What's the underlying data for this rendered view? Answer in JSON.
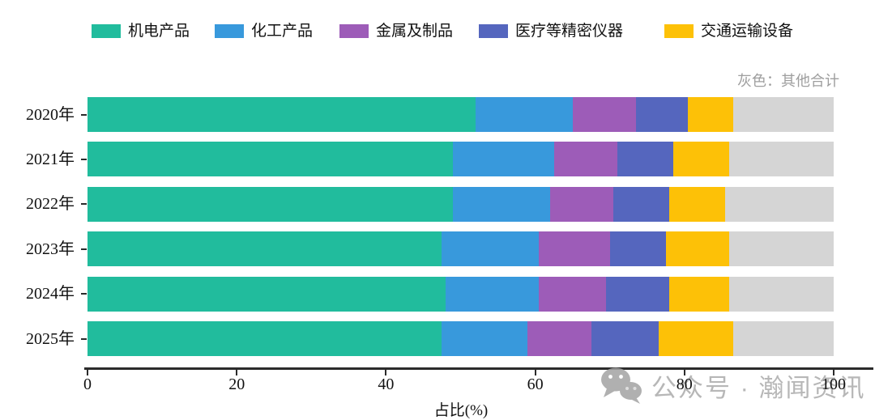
{
  "chart_data": {
    "type": "bar",
    "orientation": "horizontal-stacked",
    "title": "",
    "categories": [
      "2020年",
      "2021年",
      "2022年",
      "2023年",
      "2024年",
      "2025年"
    ],
    "series": [
      {
        "name": "机电产品",
        "color": "#21BC9D",
        "values": [
          52.0,
          49.0,
          49.0,
          47.5,
          48.0,
          47.5
        ]
      },
      {
        "name": "化工产品",
        "color": "#3899DC",
        "values": [
          13.0,
          13.5,
          13.0,
          13.0,
          12.5,
          11.5
        ]
      },
      {
        "name": "金属及制品",
        "color": "#9D5CB8",
        "values": [
          8.5,
          8.5,
          8.5,
          9.5,
          9.0,
          8.5
        ]
      },
      {
        "name": "医疗等精密仪器",
        "color": "#5566BE",
        "values": [
          7.0,
          7.5,
          7.5,
          7.5,
          8.5,
          9.0
        ]
      },
      {
        "name": "交通运输设备",
        "color": "#FDC107",
        "values": [
          6.0,
          7.5,
          7.5,
          8.5,
          8.0,
          10.0
        ]
      },
      {
        "name": "其他合计",
        "color": "#D5D5D5",
        "values": [
          13.5,
          14.0,
          14.5,
          14.0,
          14.0,
          13.5
        ]
      }
    ],
    "xlabel": "占比(%)",
    "xlim": [
      0,
      100
    ],
    "xticks": [
      0,
      20,
      40,
      60,
      80,
      100
    ],
    "grid": false,
    "legend_position": "top"
  },
  "legend": {
    "items": [
      "机电产品",
      "化工产品",
      "金属及制品",
      "医疗等精密仪器",
      "交通运输设备"
    ]
  },
  "note": "灰色：其他合计",
  "watermark": {
    "icon": "wechat-icon",
    "text": "公众号 · 瀚闻资讯"
  },
  "colors": {
    "axis": "#2b2b2b",
    "note_text": "#9e9e9e",
    "watermark_gray": "#ababab"
  }
}
